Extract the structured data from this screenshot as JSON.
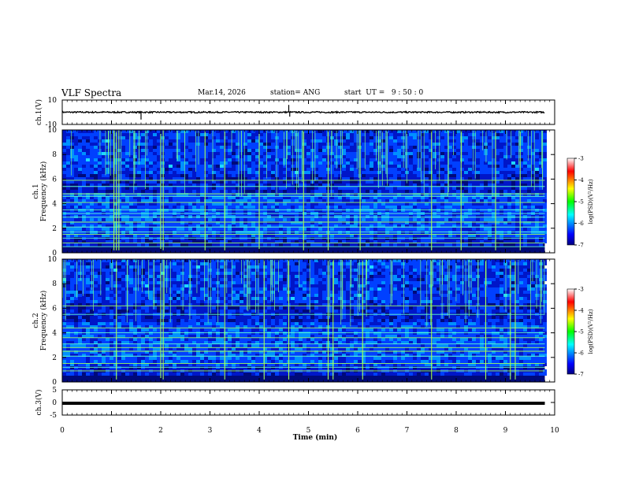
{
  "header": {
    "title": "VLF Spectra",
    "date": "Mar.14, 2026",
    "station": "station= ANG",
    "start": "start  UT =   9 : 50 : 0"
  },
  "chart_data": [
    {
      "type": "line",
      "id": "ch1v",
      "ylabel": "ch.1(V)",
      "ylim": [
        -10,
        10
      ],
      "yticks": [
        "10",
        "-10"
      ],
      "baseline": 0,
      "spikes": [
        {
          "t": 1.6,
          "v": -2.5
        },
        {
          "t": 4.6,
          "v": 2.5
        },
        {
          "t": 4.62,
          "v": -1.5
        }
      ]
    },
    {
      "type": "heatmap",
      "id": "ch1spec",
      "ylabel": "ch.1\nFrequency (kHz)",
      "ylim": [
        0,
        10
      ],
      "yticks": [
        "0",
        "2",
        "4",
        "6",
        "8",
        "10"
      ],
      "colorbar": {
        "label": "log(PSD)(V²/Hz)",
        "range": [
          -7,
          -3
        ],
        "ticks": [
          "-3",
          "-4",
          "-5",
          "-6",
          "-7"
        ]
      },
      "tones_khz": [
        0.5,
        0.8,
        1.2,
        1.5,
        1.7,
        2.1,
        2.5,
        2.9,
        3.2,
        3.5,
        4.1,
        4.6,
        4.8,
        5.4,
        5.9
      ],
      "sferic_times_min": [
        1.05,
        1.1,
        1.15,
        2.0,
        2.05,
        2.9,
        3.3,
        4.0,
        4.9,
        5.4,
        6.05,
        7.5,
        8.1,
        8.8,
        9.3
      ]
    },
    {
      "type": "heatmap",
      "id": "ch2spec",
      "ylabel": "ch.2\nFrequency (kHz)",
      "ylim": [
        0,
        10
      ],
      "yticks": [
        "0",
        "2",
        "4",
        "6",
        "8",
        "10"
      ],
      "colorbar": {
        "label": "log(PSD)(V²/Hz)",
        "range": [
          -7,
          -3
        ],
        "ticks": [
          "-3",
          "-4",
          "-5",
          "-6",
          "-7"
        ]
      },
      "tones_khz": [
        0.9,
        1.2,
        1.5,
        2.1,
        2.5,
        2.8,
        3.1,
        3.6,
        4.0,
        4.4,
        5.5,
        6.2
      ],
      "sferic_times_min": [
        1.1,
        2.0,
        2.05,
        3.3,
        4.1,
        4.6,
        5.4,
        5.5,
        6.1,
        7.5,
        8.6,
        9.1,
        9.2
      ]
    },
    {
      "type": "line",
      "id": "ch3v",
      "ylabel": "ch.3(V)",
      "ylim": [
        -5,
        5
      ],
      "yticks": [
        "5",
        "0",
        "-5"
      ],
      "baseline": 0
    }
  ],
  "xaxis": {
    "label": "Time (min)",
    "range": [
      0,
      10
    ],
    "data_end": 9.8,
    "ticks": [
      "0",
      "1",
      "2",
      "3",
      "4",
      "5",
      "6",
      "7",
      "8",
      "9",
      "10"
    ]
  }
}
